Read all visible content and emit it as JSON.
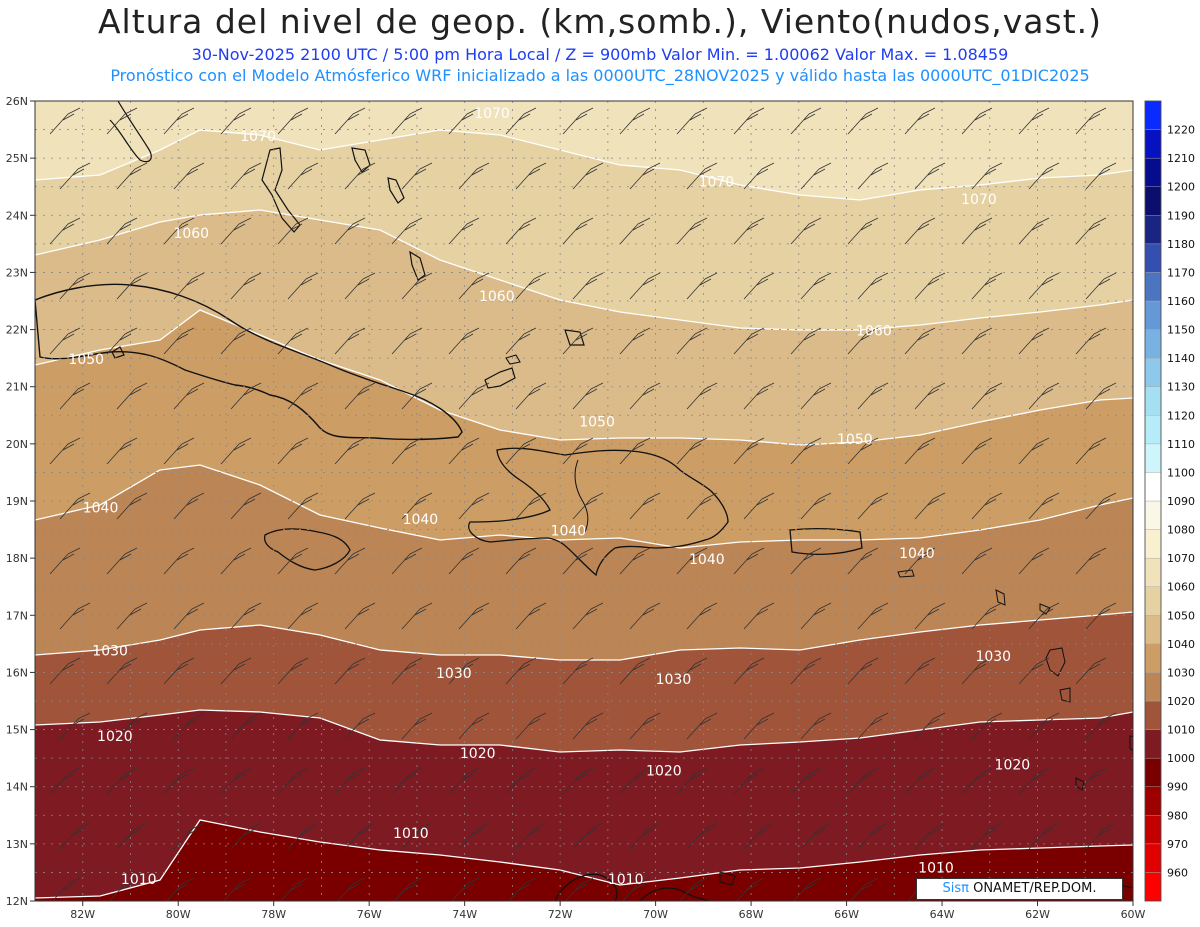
{
  "header": {
    "title": "Altura del nivel de geop. (km,somb.), Viento(nudos,vast.)",
    "subtitle": "30-Nov-2025  2100 UTC / 5:00 pm Hora Local / Z = 900mb     Valor Min. = 1.00062  Valor Max. = 1.08459",
    "info": "Pronóstico con el Modelo Atmósferico WRF inicializado a las 0000UTC_28NOV2025 y válido hasta las  0000UTC_01DIC2025"
  },
  "map": {
    "lon_range": [
      -83,
      -60
    ],
    "lat_range": [
      12,
      26
    ],
    "lon_ticks": [
      "82W",
      "80W",
      "78W",
      "76W",
      "74W",
      "72W",
      "70W",
      "68W",
      "66W",
      "64W",
      "62W",
      "60W"
    ],
    "lat_ticks": [
      "12N",
      "13N",
      "14N",
      "15N",
      "16N",
      "17N",
      "18N",
      "19N",
      "20N",
      "21N",
      "22N",
      "23N",
      "24N",
      "25N",
      "26N"
    ],
    "grid": true,
    "contour_labels": [
      {
        "text": "1070",
        "lon": -73.8,
        "lat": 25.7
      },
      {
        "text": "1070",
        "lon": -78.7,
        "lat": 25.3
      },
      {
        "text": "1070",
        "lon": -69.1,
        "lat": 24.5
      },
      {
        "text": "1070",
        "lon": -63.6,
        "lat": 24.2
      },
      {
        "text": "1060",
        "lon": -80.1,
        "lat": 23.6
      },
      {
        "text": "1060",
        "lon": -73.7,
        "lat": 22.5
      },
      {
        "text": "1060",
        "lon": -65.8,
        "lat": 21.9
      },
      {
        "text": "1050",
        "lon": -82.3,
        "lat": 21.4
      },
      {
        "text": "1050",
        "lon": -71.6,
        "lat": 20.3
      },
      {
        "text": "1050",
        "lon": -66.2,
        "lat": 20.0
      },
      {
        "text": "1040",
        "lon": -82.0,
        "lat": 18.8
      },
      {
        "text": "1040",
        "lon": -75.3,
        "lat": 18.6
      },
      {
        "text": "1040",
        "lon": -72.2,
        "lat": 18.4
      },
      {
        "text": "1040",
        "lon": -69.3,
        "lat": 17.9
      },
      {
        "text": "1040",
        "lon": -64.9,
        "lat": 18.0
      },
      {
        "text": "1030",
        "lon": -81.8,
        "lat": 16.3
      },
      {
        "text": "1030",
        "lon": -74.6,
        "lat": 15.9
      },
      {
        "text": "1030",
        "lon": -70.0,
        "lat": 15.8
      },
      {
        "text": "1030",
        "lon": -63.3,
        "lat": 16.2
      },
      {
        "text": "1020",
        "lon": -81.7,
        "lat": 14.8
      },
      {
        "text": "1020",
        "lon": -74.1,
        "lat": 14.5
      },
      {
        "text": "1020",
        "lon": -70.2,
        "lat": 14.2
      },
      {
        "text": "1020",
        "lon": -62.9,
        "lat": 14.3
      },
      {
        "text": "1010",
        "lon": -75.5,
        "lat": 13.1
      },
      {
        "text": "1010",
        "lon": -81.2,
        "lat": 12.3
      },
      {
        "text": "1010",
        "lon": -71.0,
        "lat": 12.3
      },
      {
        "text": "1010",
        "lon": -64.5,
        "lat": 12.5
      }
    ]
  },
  "colorbar": {
    "levels": [
      "960",
      "970",
      "980",
      "990",
      "1000",
      "1010",
      "1020",
      "1030",
      "1040",
      "1050",
      "1060",
      "1070",
      "1080",
      "1090",
      "1100",
      "1110",
      "1120",
      "1130",
      "1140",
      "1150",
      "1160",
      "1170",
      "1180",
      "1190",
      "1200",
      "1210",
      "1220"
    ],
    "colors": [
      "#ff0000",
      "#e00000",
      "#c20000",
      "#9e0000",
      "#7a0000",
      "#7d1a22",
      "#a0543a",
      "#bb8555",
      "#cc9d65",
      "#dbbb89",
      "#e6d1a3",
      "#f0e2ba",
      "#f8f0cf",
      "#fbf7e6",
      "#ffffff",
      "#cdf5fb",
      "#b5ecf7",
      "#a5e0f2",
      "#8ec8ea",
      "#78b1e2",
      "#6498d6",
      "#4b74c1",
      "#344faf",
      "#1a2482",
      "#0a0f6e",
      "#060c8e",
      "#0612c2",
      "#0a2bff"
    ]
  },
  "credit": {
    "brand": "Sisπ",
    "text": " ONAMET/REP.DOM."
  }
}
